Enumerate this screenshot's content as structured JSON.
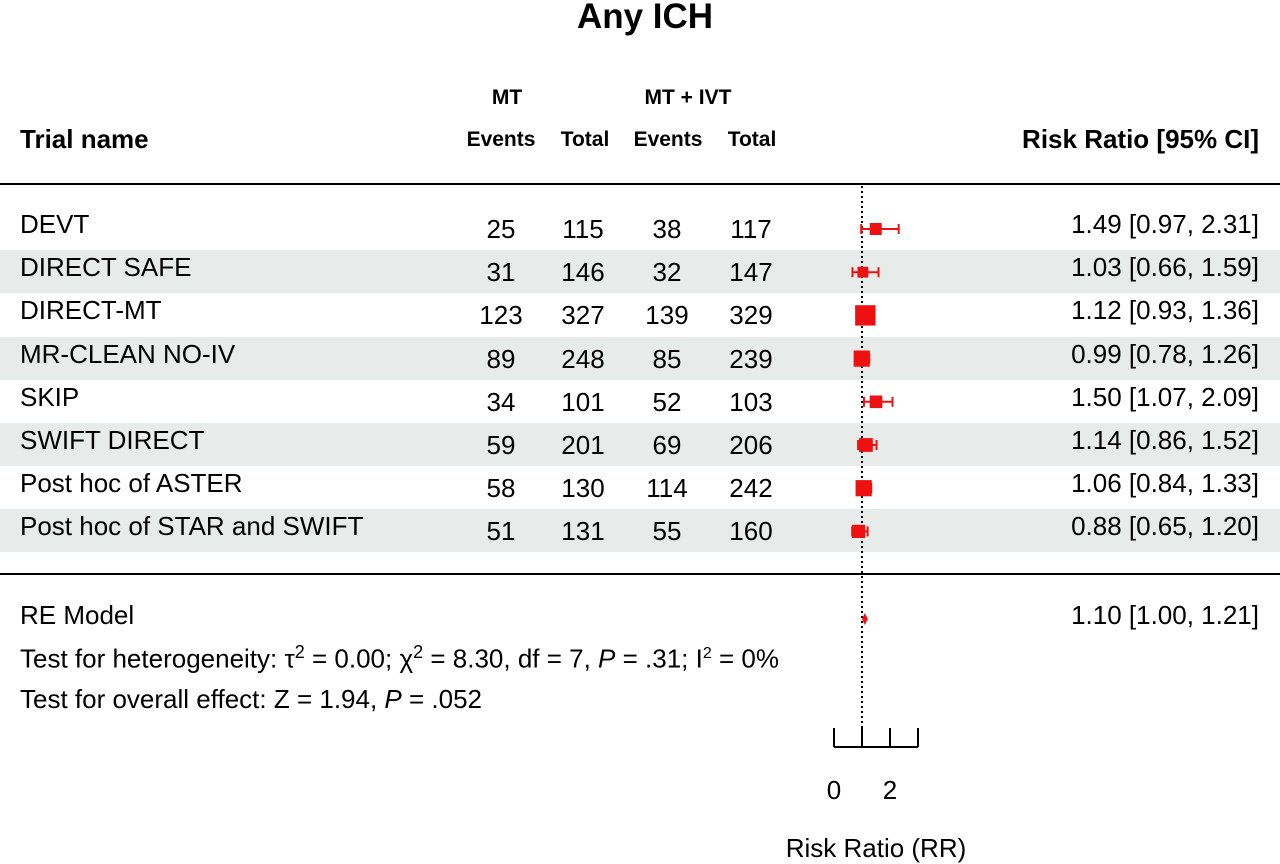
{
  "title": "Any ICH",
  "header": {
    "trial_name": "Trial name",
    "group_mt": "MT",
    "group_mtivt": "MT + IVT",
    "events": "Events",
    "total": "Total",
    "risk_ratio_ci": "Risk Ratio [95% CI]"
  },
  "rows": [
    {
      "trial": "DEVT",
      "mt_events": "25",
      "mt_total": "115",
      "ivt_events": "38",
      "ivt_total": "117",
      "ci_text": "1.49 [0.97, 2.31]"
    },
    {
      "trial": "DIRECT SAFE",
      "mt_events": "31",
      "mt_total": "146",
      "ivt_events": "32",
      "ivt_total": "147",
      "ci_text": "1.03 [0.66, 1.59]"
    },
    {
      "trial": "DIRECT-MT",
      "mt_events": "123",
      "mt_total": "327",
      "ivt_events": "139",
      "ivt_total": "329",
      "ci_text": "1.12 [0.93, 1.36]"
    },
    {
      "trial": "MR-CLEAN NO-IV",
      "mt_events": "89",
      "mt_total": "248",
      "ivt_events": "85",
      "ivt_total": "239",
      "ci_text": "0.99 [0.78, 1.26]"
    },
    {
      "trial": "SKIP",
      "mt_events": "34",
      "mt_total": "101",
      "ivt_events": "52",
      "ivt_total": "103",
      "ci_text": "1.50 [1.07, 2.09]"
    },
    {
      "trial": "SWIFT DIRECT",
      "mt_events": "59",
      "mt_total": "201",
      "ivt_events": "69",
      "ivt_total": "206",
      "ci_text": "1.14 [0.86, 1.52]"
    },
    {
      "trial": "Post hoc of ASTER",
      "mt_events": "58",
      "mt_total": "130",
      "ivt_events": "114",
      "ivt_total": "242",
      "ci_text": "1.06 [0.84, 1.33]"
    },
    {
      "trial": "Post hoc of STAR and SWIFT",
      "mt_events": "51",
      "mt_total": "131",
      "ivt_events": "55",
      "ivt_total": "160",
      "ci_text": "0.88 [0.65, 1.20]"
    }
  ],
  "summary": {
    "label": "RE Model",
    "ci_text": "1.10 [1.00, 1.21]",
    "heterogeneity_prefix": "Test for heterogeneity: ",
    "tau": "τ",
    "tau_sup": "2",
    "tau_value": " = 0.00; ",
    "chi": "χ",
    "chi_sup": "2",
    "chi_value": " = 8.30, df = 7, ",
    "p_label": "P",
    "p_value": " = .31; I",
    "i_sup": "2",
    "i_value": " = 0%",
    "overall_prefix": "Test for overall effect: Z = 1.94, ",
    "overall_p_label": "P",
    "overall_p_value": " = .052"
  },
  "chart_data": {
    "type": "forest",
    "title": "Any ICH",
    "xlabel": "Risk Ratio (RR)",
    "x_ticks": [
      0,
      2
    ],
    "x_tick_marks": [
      0,
      1,
      2,
      3
    ],
    "xlim": [
      0,
      3
    ],
    "reference_line": 1,
    "marker_color": "#ee1111",
    "studies": [
      {
        "name": "DEVT",
        "rr": 1.49,
        "lower": 0.97,
        "upper": 2.31,
        "weight": 0.1
      },
      {
        "name": "DIRECT SAFE",
        "rr": 1.03,
        "lower": 0.66,
        "upper": 1.59,
        "weight": 0.08
      },
      {
        "name": "DIRECT-MT",
        "rr": 1.12,
        "lower": 0.93,
        "upper": 1.36,
        "weight": 0.24
      },
      {
        "name": "MR-CLEAN NO-IV",
        "rr": 0.99,
        "lower": 0.78,
        "upper": 1.26,
        "weight": 0.17
      },
      {
        "name": "SKIP",
        "rr": 1.5,
        "lower": 1.07,
        "upper": 2.09,
        "weight": 0.11
      },
      {
        "name": "SWIFT DIRECT",
        "rr": 1.14,
        "lower": 0.86,
        "upper": 1.52,
        "weight": 0.13
      },
      {
        "name": "Post hoc of ASTER",
        "rr": 1.06,
        "lower": 0.84,
        "upper": 1.33,
        "weight": 0.17
      },
      {
        "name": "Post hoc of STAR and SWIFT",
        "rr": 0.88,
        "lower": 0.65,
        "upper": 1.2,
        "weight": 0.12
      }
    ],
    "summary": {
      "name": "RE Model",
      "rr": 1.1,
      "lower": 1.0,
      "upper": 1.21
    }
  }
}
